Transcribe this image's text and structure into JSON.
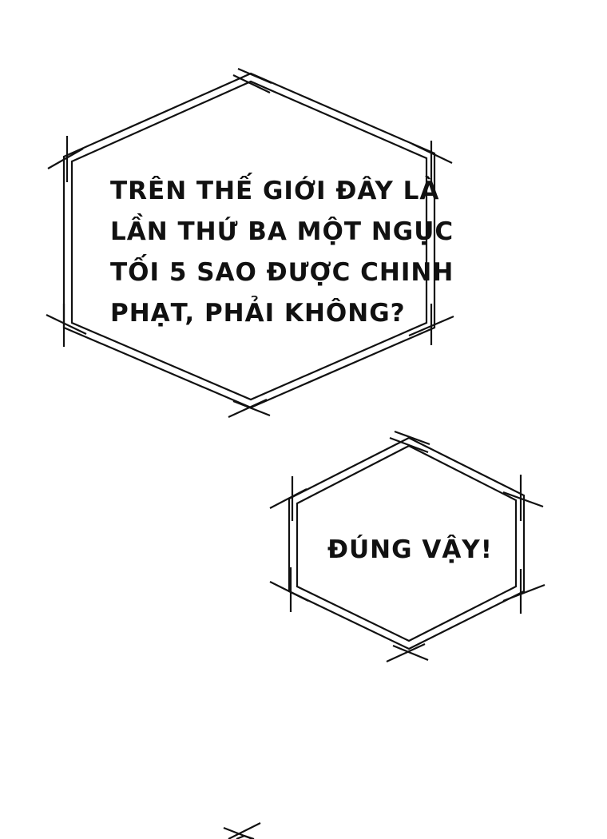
{
  "panel": {
    "background": "#ffffff",
    "ink_color": "#111111"
  },
  "bubbles": [
    {
      "shape": "hexagon-frame",
      "lines": [
        "TRÊN THẾ GIỚI ĐÂY LÀ",
        "LẦN THỨ BA MỘT NGỤC",
        "TỐI 5 SAO ĐƯỢC CHINH",
        "PHẠT, PHẢI KHÔNG?"
      ]
    },
    {
      "shape": "hexagon-frame",
      "lines": [
        "ĐÚNG VẬY!"
      ]
    }
  ]
}
